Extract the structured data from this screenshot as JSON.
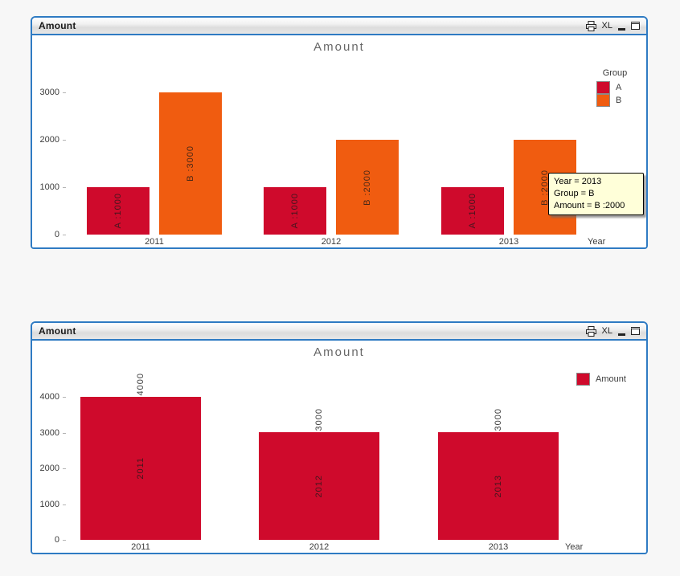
{
  "colors": {
    "page_bg": "#f7f7f7",
    "window_border": "#2f7bc3",
    "series_red": "#cf0a2c",
    "series_orange": "#f05c10",
    "chart_title_text": "#666666",
    "tooltip_bg": "#ffffd9"
  },
  "caption_icons": {
    "excel_label": "XL"
  },
  "windows": [
    {
      "caption_title": "Amount"
    },
    {
      "caption_title": "Amount"
    }
  ],
  "tooltip": {
    "lines": [
      "Year = 2013",
      "Group = B",
      "Amount = B :2000"
    ],
    "bg": "#ffffd9"
  },
  "chart_data": [
    {
      "type": "bar",
      "title": "Amount",
      "xlabel": "Year",
      "categories": [
        "2011",
        "2012",
        "2013"
      ],
      "series": [
        {
          "name": "A",
          "color": "#cf0a2c",
          "values": [
            1000,
            1000,
            1000
          ]
        },
        {
          "name": "B",
          "color": "#f05c10",
          "values": [
            3000,
            2000,
            2000
          ]
        }
      ],
      "bar_labels": [
        [
          "A :1000",
          "B :3000"
        ],
        [
          "A :1000",
          "B :2000"
        ],
        [
          "A :1000",
          "B :2000"
        ]
      ],
      "ylim": [
        0,
        3000
      ],
      "yticks": [
        0,
        1000,
        2000,
        3000
      ],
      "legend_title": "Group",
      "legend_position": "right",
      "grid": false
    },
    {
      "type": "bar",
      "title": "Amount",
      "xlabel": "Year",
      "categories": [
        "2011",
        "2012",
        "2013"
      ],
      "series": [
        {
          "name": "Amount",
          "color": "#cf0a2c",
          "values": [
            4000,
            3000,
            3000
          ]
        }
      ],
      "value_labels_above": [
        "4000",
        "3000",
        "3000"
      ],
      "in_bar_labels": [
        "2011",
        "2012",
        "2013"
      ],
      "ylim": [
        0,
        4000
      ],
      "yticks": [
        0,
        1000,
        2000,
        3000,
        4000
      ],
      "legend_position": "right",
      "grid": false
    }
  ]
}
